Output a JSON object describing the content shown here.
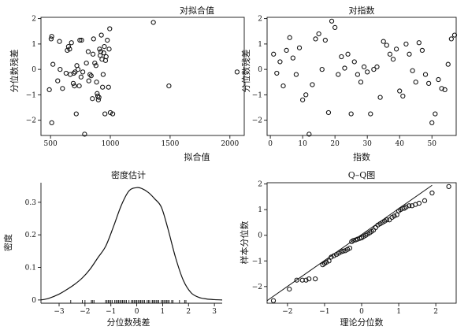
{
  "chart_data": [
    {
      "id": "fitted",
      "type": "scatter",
      "title": "对拟合值",
      "xlabel": "拟合值",
      "ylabel": "分位数残差",
      "xlim": [
        420,
        2120
      ],
      "ylim": [
        -2.6,
        2.05
      ],
      "xticks": [
        500,
        1000,
        1500,
        2000
      ],
      "yticks": [
        -2,
        -1,
        0,
        1,
        2
      ],
      "points": [
        [
          510,
          1.3
        ],
        [
          505,
          1.2
        ],
        [
          520,
          0.2
        ],
        [
          490,
          -0.8
        ],
        [
          510,
          -2.1
        ],
        [
          560,
          -0.45
        ],
        [
          575,
          1.1
        ],
        [
          580,
          0.0
        ],
        [
          600,
          -0.75
        ],
        [
          630,
          -0.15
        ],
        [
          640,
          0.75
        ],
        [
          650,
          0.9
        ],
        [
          660,
          0.8
        ],
        [
          665,
          -0.2
        ],
        [
          675,
          1.05
        ],
        [
          690,
          -0.55
        ],
        [
          695,
          -0.15
        ],
        [
          700,
          -0.65
        ],
        [
          705,
          -0.1
        ],
        [
          715,
          -1.75
        ],
        [
          720,
          0.15
        ],
        [
          730,
          0.0
        ],
        [
          740,
          -0.65
        ],
        [
          745,
          1.15
        ],
        [
          755,
          -0.3
        ],
        [
          760,
          1.15
        ],
        [
          770,
          -0.1
        ],
        [
          785,
          -2.55
        ],
        [
          800,
          0.25
        ],
        [
          815,
          0.7
        ],
        [
          820,
          -0.45
        ],
        [
          830,
          -0.2
        ],
        [
          840,
          -0.25
        ],
        [
          850,
          -1.15
        ],
        [
          855,
          0.6
        ],
        [
          860,
          1.2
        ],
        [
          870,
          0.25
        ],
        [
          880,
          0.15
        ],
        [
          885,
          -0.5
        ],
        [
          890,
          -0.95
        ],
        [
          895,
          -1.05
        ],
        [
          900,
          -1.2
        ],
        [
          905,
          -1.1
        ],
        [
          910,
          0.8
        ],
        [
          915,
          0.55
        ],
        [
          920,
          0.7
        ],
        [
          925,
          1.35
        ],
        [
          930,
          0.4
        ],
        [
          935,
          -0.7
        ],
        [
          940,
          -0.2
        ],
        [
          945,
          0.65
        ],
        [
          950,
          0.9
        ],
        [
          955,
          -1.75
        ],
        [
          960,
          0.35
        ],
        [
          965,
          0.5
        ],
        [
          975,
          1.15
        ],
        [
          985,
          -0.7
        ],
        [
          990,
          0.8
        ],
        [
          995,
          1.6
        ],
        [
          1000,
          -1.7
        ],
        [
          1020,
          -1.75
        ],
        [
          1360,
          1.85
        ],
        [
          1490,
          -0.65
        ],
        [
          2060,
          -0.1
        ]
      ]
    },
    {
      "id": "index",
      "type": "scatter",
      "title": "对指数",
      "xlabel": "指数",
      "ylabel": "分位数残差",
      "xlim": [
        -1,
        57.5
      ],
      "ylim": [
        -2.6,
        2.05
      ],
      "xticks": [
        0,
        10,
        20,
        30,
        40,
        50
      ],
      "yticks": [
        -2,
        -1,
        0,
        1,
        2
      ],
      "points": [
        [
          1,
          0.6
        ],
        [
          2,
          -0.15
        ],
        [
          3,
          0.3
        ],
        [
          4,
          -0.65
        ],
        [
          5,
          0.75
        ],
        [
          6,
          1.25
        ],
        [
          7,
          0.45
        ],
        [
          8,
          -0.2
        ],
        [
          9,
          0.85
        ],
        [
          10,
          -1.2
        ],
        [
          11,
          -1.0
        ],
        [
          12,
          -2.55
        ],
        [
          13,
          -0.6
        ],
        [
          14,
          1.2
        ],
        [
          15,
          1.4
        ],
        [
          16,
          0.0
        ],
        [
          17,
          1.15
        ],
        [
          18,
          -1.7
        ],
        [
          19,
          1.9
        ],
        [
          20,
          1.65
        ],
        [
          21,
          -0.2
        ],
        [
          22,
          0.5
        ],
        [
          23,
          0.05
        ],
        [
          24,
          0.6
        ],
        [
          25,
          -1.75
        ],
        [
          26,
          0.3
        ],
        [
          27,
          -0.2
        ],
        [
          28,
          -0.5
        ],
        [
          29,
          0.1
        ],
        [
          30,
          -0.1
        ],
        [
          31,
          -1.75
        ],
        [
          32,
          0.0
        ],
        [
          33,
          0.1
        ],
        [
          34,
          -1.1
        ],
        [
          35,
          1.1
        ],
        [
          36,
          0.95
        ],
        [
          37,
          0.6
        ],
        [
          38,
          0.4
        ],
        [
          39,
          0.8
        ],
        [
          40,
          -0.85
        ],
        [
          41,
          -1.05
        ],
        [
          42,
          1.0
        ],
        [
          43,
          0.6
        ],
        [
          44,
          -0.05
        ],
        [
          45,
          -0.5
        ],
        [
          46,
          1.05
        ],
        [
          47,
          0.75
        ],
        [
          48,
          -0.2
        ],
        [
          49,
          -0.55
        ],
        [
          50,
          -2.1
        ],
        [
          51,
          -1.75
        ],
        [
          52,
          -0.4
        ],
        [
          53,
          -0.75
        ],
        [
          54,
          -0.8
        ],
        [
          55,
          0.2
        ],
        [
          56,
          1.2
        ],
        [
          57,
          1.35
        ]
      ]
    },
    {
      "id": "density",
      "type": "line",
      "title": "密度估计",
      "xlabel": "分位数残差",
      "ylabel": "密度",
      "xlim": [
        -3.7,
        3.3
      ],
      "ylim": [
        -0.01,
        0.36
      ],
      "xticks": [
        -3,
        -2,
        -1,
        0,
        1,
        2,
        3
      ],
      "yticks": [
        0,
        0.1,
        0.2,
        0.3
      ],
      "curve": {
        "x": [
          -3.7,
          -3.4,
          -3.0,
          -2.7,
          -2.4,
          -2.1,
          -1.8,
          -1.5,
          -1.2,
          -0.9,
          -0.6,
          -0.3,
          0.0,
          0.2,
          0.45,
          0.7,
          0.95,
          1.2,
          1.5,
          1.8,
          2.1,
          2.4,
          2.7,
          3.0,
          3.3
        ],
        "y": [
          0.0,
          0.005,
          0.018,
          0.032,
          0.048,
          0.068,
          0.095,
          0.13,
          0.165,
          0.225,
          0.29,
          0.335,
          0.345,
          0.342,
          0.33,
          0.31,
          0.285,
          0.22,
          0.13,
          0.06,
          0.022,
          0.008,
          0.003,
          0.001,
          0.0
        ]
      },
      "rug": [
        -2.55,
        -2.1,
        -2.0,
        -1.75,
        -1.75,
        -1.7,
        -1.65,
        -1.2,
        -1.15,
        -1.1,
        -1.05,
        -1.0,
        -0.95,
        -0.85,
        -0.8,
        -0.75,
        -0.7,
        -0.65,
        -0.6,
        -0.55,
        -0.5,
        -0.45,
        -0.4,
        -0.3,
        -0.2,
        -0.2,
        -0.15,
        -0.1,
        -0.05,
        0.0,
        0.05,
        0.1,
        0.15,
        0.2,
        0.25,
        0.3,
        0.4,
        0.45,
        0.5,
        0.6,
        0.6,
        0.65,
        0.7,
        0.75,
        0.8,
        0.85,
        0.95,
        1.0,
        1.05,
        1.1,
        1.15,
        1.2,
        1.25,
        1.35,
        1.4,
        1.65,
        1.85,
        1.9
      ]
    },
    {
      "id": "qq",
      "type": "scatter",
      "title": "Q–Q图",
      "xlabel": "理论分位数",
      "ylabel": "样本分位数",
      "xlim": [
        -2.55,
        2.55
      ],
      "ylim": [
        -2.65,
        2.05
      ],
      "xticks": [
        -2,
        -1,
        0,
        1,
        2
      ],
      "yticks": [
        -2,
        -1,
        0,
        1,
        2
      ],
      "reference_line": {
        "x": [
          -2.55,
          1.9
        ],
        "y": [
          -2.55,
          1.95
        ]
      },
      "points": [
        [
          -2.38,
          -2.55
        ],
        [
          -1.95,
          -2.1
        ],
        [
          -1.75,
          -1.75
        ],
        [
          -1.6,
          -1.75
        ],
        [
          -1.5,
          -1.75
        ],
        [
          -1.42,
          -1.7
        ],
        [
          -1.25,
          -1.7
        ],
        [
          -1.05,
          -1.15
        ],
        [
          -1.0,
          -1.1
        ],
        [
          -0.95,
          -1.05
        ],
        [
          -0.88,
          -1.0
        ],
        [
          -0.82,
          -0.85
        ],
        [
          -0.75,
          -0.8
        ],
        [
          -0.68,
          -0.75
        ],
        [
          -0.62,
          -0.7
        ],
        [
          -0.56,
          -0.65
        ],
        [
          -0.5,
          -0.62
        ],
        [
          -0.44,
          -0.6
        ],
        [
          -0.38,
          -0.55
        ],
        [
          -0.32,
          -0.5
        ],
        [
          -0.27,
          -0.25
        ],
        [
          -0.22,
          -0.2
        ],
        [
          -0.16,
          -0.18
        ],
        [
          -0.11,
          -0.15
        ],
        [
          -0.05,
          -0.12
        ],
        [
          0.0,
          -0.1
        ],
        [
          0.05,
          -0.05
        ],
        [
          0.11,
          0.0
        ],
        [
          0.16,
          0.05
        ],
        [
          0.22,
          0.1
        ],
        [
          0.27,
          0.15
        ],
        [
          0.32,
          0.2
        ],
        [
          0.38,
          0.3
        ],
        [
          0.44,
          0.4
        ],
        [
          0.5,
          0.45
        ],
        [
          0.56,
          0.5
        ],
        [
          0.62,
          0.55
        ],
        [
          0.68,
          0.6
        ],
        [
          0.75,
          0.6
        ],
        [
          0.82,
          0.7
        ],
        [
          0.88,
          0.75
        ],
        [
          0.95,
          0.8
        ],
        [
          1.0,
          0.95
        ],
        [
          1.05,
          1.0
        ],
        [
          1.1,
          1.05
        ],
        [
          1.15,
          1.05
        ],
        [
          1.2,
          1.1
        ],
        [
          1.28,
          1.15
        ],
        [
          1.36,
          1.15
        ],
        [
          1.45,
          1.2
        ],
        [
          1.55,
          1.25
        ],
        [
          1.7,
          1.35
        ],
        [
          1.9,
          1.65
        ],
        [
          2.35,
          1.9
        ]
      ]
    }
  ]
}
